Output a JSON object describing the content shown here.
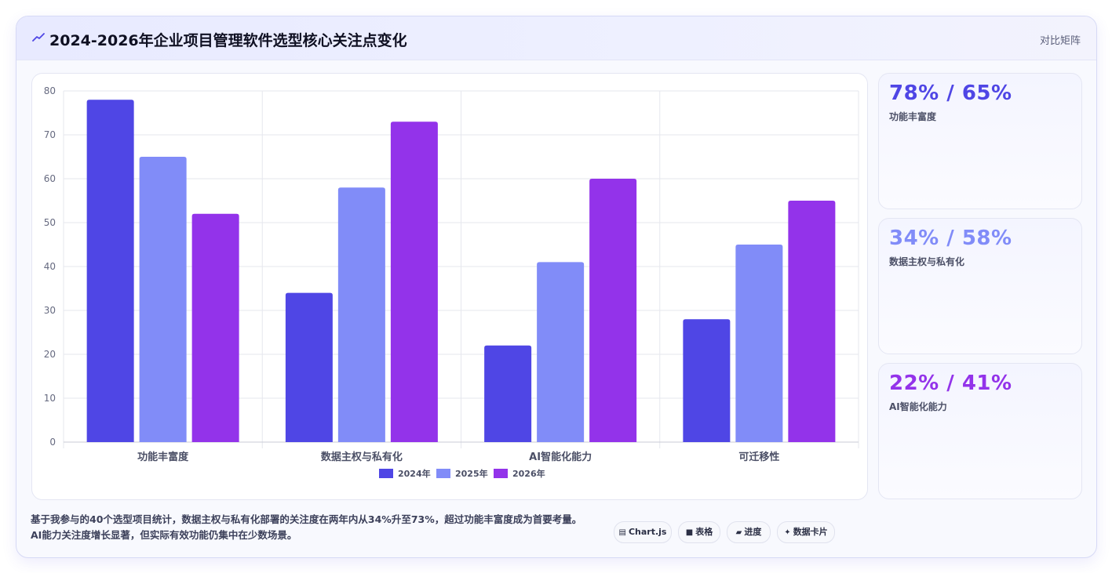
{
  "header": {
    "title": "2024-2026年企业项目管理软件选型核心关注点变化",
    "view_link": "对比矩阵"
  },
  "stats": [
    {
      "value": "78% / 65%",
      "label": "功能丰富度",
      "color": "#4f46e5"
    },
    {
      "value": "34% / 58%",
      "label": "数据主权与私有化",
      "color": "#818cf8"
    },
    {
      "value": "22% / 41%",
      "label": "AI智能化能力",
      "color": "#9333ea"
    }
  ],
  "footer": {
    "line1": "基于我参与的40个选型项目统计，数据主权与私有化部署的关注度在两年内从34%升至73%，超过功能丰富度成为首要考量。",
    "line2": "AI能力关注度增长显著，但实际有效功能仍集中在少数场景。"
  },
  "chips": [
    {
      "icon": "▤",
      "label": "Chart.js",
      "icon_name": "chart-icon"
    },
    {
      "icon": "■",
      "label": "表格",
      "icon_name": "table-icon"
    },
    {
      "icon": "▰",
      "label": "进度",
      "icon_name": "progress-icon"
    },
    {
      "icon": "✦",
      "label": "数据卡片",
      "icon_name": "sparkle-icon"
    }
  ],
  "chart_data": {
    "type": "bar",
    "categories": [
      "功能丰富度",
      "数据主权与私有化",
      "AI智能化能力",
      "可迁移性"
    ],
    "series": [
      {
        "name": "2024年",
        "values": [
          78,
          34,
          22,
          28
        ],
        "color": "#4f46e5"
      },
      {
        "name": "2025年",
        "values": [
          65,
          58,
          41,
          45
        ],
        "color": "#818cf8"
      },
      {
        "name": "2026年",
        "values": [
          52,
          73,
          60,
          55
        ],
        "color": "#9333ea"
      }
    ],
    "ylim": [
      0,
      80
    ],
    "yticks": [
      "0",
      "10",
      "20",
      "30",
      "40",
      "50",
      "60",
      "70",
      "80"
    ],
    "grid": true,
    "legend": "bottom"
  }
}
